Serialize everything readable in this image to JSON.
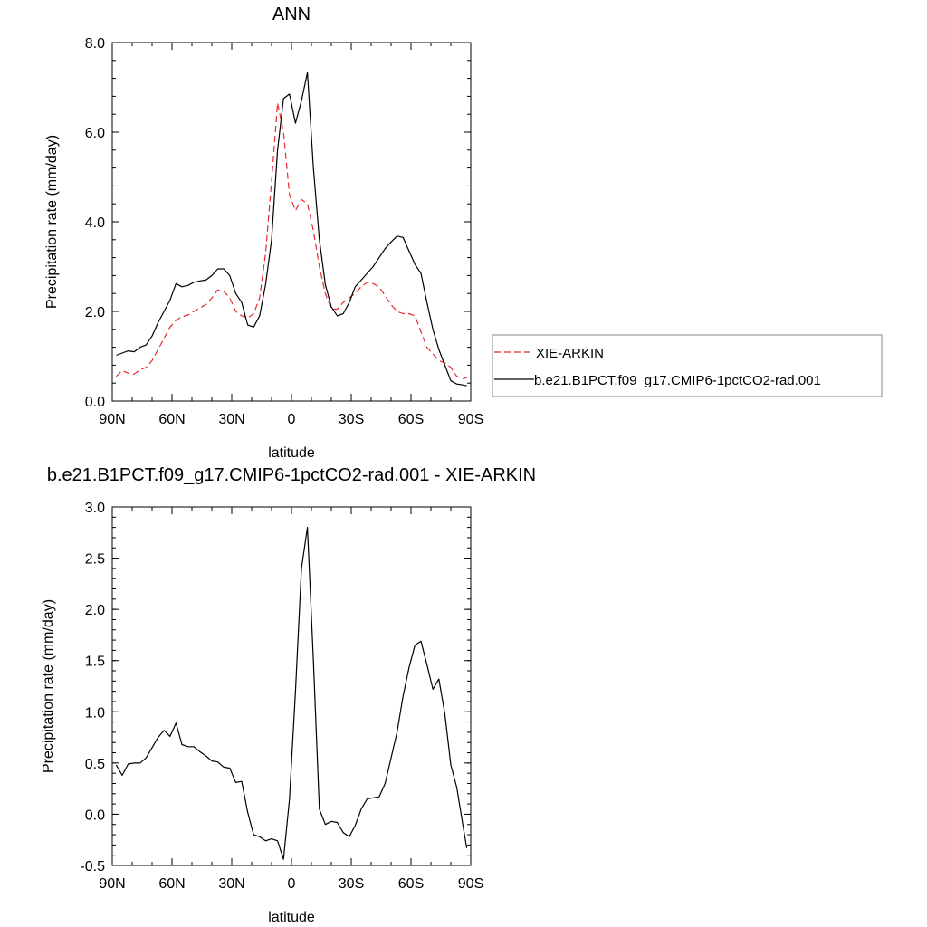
{
  "chart_data": [
    {
      "type": "line",
      "title": "ANN",
      "xlabel": "latitude",
      "ylabel": "Precipitation rate (mm/day)",
      "xlim": [
        -90,
        90
      ],
      "ylim": [
        0,
        8
      ],
      "x_ticks": [
        -90,
        -60,
        -30,
        0,
        30,
        60,
        90
      ],
      "x_tick_labels": [
        "90N",
        "60N",
        "30N",
        "0",
        "30S",
        "60S",
        "90S"
      ],
      "y_ticks": [
        0,
        2,
        4,
        6,
        8
      ],
      "y_tick_labels": [
        "0.0",
        "2.0",
        "4.0",
        "6.0",
        "8.0"
      ],
      "legend_position": "right",
      "series": [
        {
          "name": "XIE-ARKIN",
          "color": "#e8292f",
          "dash": "dashed",
          "x": [
            -88,
            -85,
            -82,
            -79,
            -76,
            -73,
            -70,
            -67,
            -64,
            -61,
            -58,
            -55,
            -52,
            -49,
            -46,
            -43,
            -40,
            -37,
            -34,
            -31,
            -28,
            -25,
            -22,
            -19,
            -16,
            -13,
            -10,
            -7,
            -4,
            -1,
            2,
            5,
            8,
            11,
            14,
            17,
            20,
            23,
            26,
            29,
            32,
            35,
            38,
            41,
            44,
            47,
            50,
            53,
            56,
            59,
            62,
            65,
            68,
            71,
            74,
            77,
            80,
            83,
            86,
            88
          ],
          "values": [
            0.55,
            0.68,
            0.62,
            0.6,
            0.7,
            0.75,
            0.9,
            1.15,
            1.4,
            1.65,
            1.8,
            1.88,
            1.92,
            2.0,
            2.08,
            2.15,
            2.3,
            2.48,
            2.45,
            2.3,
            2.0,
            1.9,
            1.85,
            1.95,
            2.3,
            3.3,
            4.9,
            6.65,
            6.0,
            4.6,
            4.25,
            4.5,
            4.4,
            3.8,
            3.0,
            2.4,
            2.05,
            2.05,
            2.2,
            2.3,
            2.4,
            2.55,
            2.65,
            2.62,
            2.55,
            2.35,
            2.15,
            2.0,
            1.95,
            1.95,
            1.9,
            1.55,
            1.2,
            1.05,
            0.9,
            0.85,
            0.75,
            0.55,
            0.5,
            0.52
          ]
        },
        {
          "name": "b.e21.B1PCT.f09_g17.CMIP6-1pctCO2-rad.001",
          "color": "#000000",
          "dash": "solid",
          "x": [
            -88,
            -85,
            -82,
            -79,
            -76,
            -73,
            -70,
            -67,
            -64,
            -61,
            -58,
            -55,
            -52,
            -49,
            -46,
            -43,
            -40,
            -37,
            -34,
            -31,
            -28,
            -25,
            -22,
            -19,
            -16,
            -13,
            -10,
            -7,
            -4,
            -1,
            2,
            5,
            8,
            11,
            14,
            17,
            20,
            23,
            26,
            29,
            32,
            35,
            38,
            41,
            44,
            47,
            50,
            53,
            56,
            59,
            62,
            65,
            68,
            71,
            74,
            77,
            80,
            83,
            86,
            88
          ],
          "values": [
            1.02,
            1.07,
            1.12,
            1.1,
            1.2,
            1.25,
            1.45,
            1.75,
            2.0,
            2.25,
            2.62,
            2.55,
            2.58,
            2.65,
            2.68,
            2.7,
            2.8,
            2.95,
            2.95,
            2.8,
            2.4,
            2.2,
            1.7,
            1.65,
            1.9,
            2.6,
            3.6,
            5.6,
            6.75,
            6.85,
            6.2,
            6.7,
            7.33,
            5.2,
            3.6,
            2.6,
            2.1,
            1.9,
            1.95,
            2.2,
            2.55,
            2.7,
            2.85,
            3.0,
            3.2,
            3.4,
            3.55,
            3.68,
            3.65,
            3.35,
            3.05,
            2.85,
            2.2,
            1.6,
            1.15,
            0.8,
            0.45,
            0.38,
            0.36,
            0.34
          ]
        }
      ]
    },
    {
      "type": "line",
      "title": "b.e21.B1PCT.f09_g17.CMIP6-1pctCO2-rad.001 - XIE-ARKIN",
      "xlabel": "latitude",
      "ylabel": "Precipitation rate (mm/day)",
      "xlim": [
        -90,
        90
      ],
      "ylim": [
        -0.5,
        3.0
      ],
      "x_ticks": [
        -90,
        -60,
        -30,
        0,
        30,
        60,
        90
      ],
      "x_tick_labels": [
        "90N",
        "60N",
        "30N",
        "0",
        "30S",
        "60S",
        "90S"
      ],
      "y_ticks": [
        -0.5,
        0,
        0.5,
        1.0,
        1.5,
        2.0,
        2.5,
        3.0
      ],
      "y_tick_labels": [
        "-0.5",
        "0.0",
        "0.5",
        "1.0",
        "1.5",
        "2.0",
        "2.5",
        "3.0"
      ],
      "series": [
        {
          "color": "#000000",
          "dash": "solid",
          "x": [
            -88,
            -85,
            -82,
            -79,
            -76,
            -73,
            -70,
            -67,
            -64,
            -61,
            -58,
            -55,
            -52,
            -49,
            -46,
            -43,
            -40,
            -37,
            -34,
            -31,
            -28,
            -25,
            -22,
            -19,
            -16,
            -13,
            -10,
            -7,
            -4,
            -1,
            2,
            5,
            8,
            11,
            14,
            17,
            20,
            23,
            26,
            29,
            32,
            35,
            38,
            41,
            44,
            47,
            50,
            53,
            56,
            59,
            62,
            65,
            68,
            71,
            74,
            77,
            80,
            83,
            86,
            88
          ],
          "values": [
            0.48,
            0.38,
            0.49,
            0.5,
            0.5,
            0.55,
            0.65,
            0.75,
            0.82,
            0.76,
            0.89,
            0.68,
            0.66,
            0.66,
            0.61,
            0.57,
            0.52,
            0.51,
            0.46,
            0.45,
            0.31,
            0.32,
            0.02,
            -0.2,
            -0.22,
            -0.26,
            -0.24,
            -0.26,
            -0.44,
            0.15,
            1.2,
            2.4,
            2.8,
            1.5,
            0.05,
            -0.1,
            -0.07,
            -0.08,
            -0.18,
            -0.22,
            -0.11,
            0.05,
            0.15,
            0.16,
            0.17,
            0.3,
            0.55,
            0.8,
            1.15,
            1.43,
            1.65,
            1.69,
            1.46,
            1.22,
            1.32,
            0.98,
            0.48,
            0.26,
            -0.1,
            -0.33
          ]
        }
      ]
    }
  ]
}
